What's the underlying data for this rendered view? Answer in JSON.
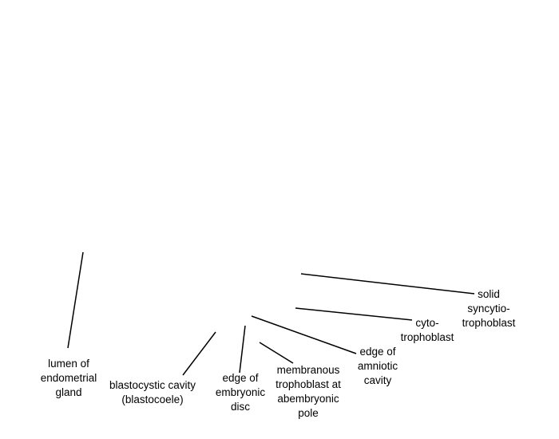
{
  "labels": {
    "lumen_gland": [
      "lumen of",
      "endometrial",
      "gland"
    ],
    "blastocystic_cavity": [
      "blastocystic cavity",
      "(blastocoele)"
    ],
    "embryonic_disc": [
      "edge of",
      "embryonic",
      "disc"
    ],
    "membranous_trophoblast": [
      "membranous",
      "trophoblast at",
      "abembryonic",
      "pole"
    ],
    "amniotic_cavity": [
      "edge of",
      "amniotic",
      "cavity"
    ],
    "cytotrophoblast": [
      "cyto-",
      "trophoblast"
    ],
    "syncytiotrophoblast": [
      "solid",
      "syncytio-",
      "trophoblast"
    ]
  },
  "colors": {
    "background": "#ffffff",
    "line": "#000000",
    "text": "#000000"
  }
}
